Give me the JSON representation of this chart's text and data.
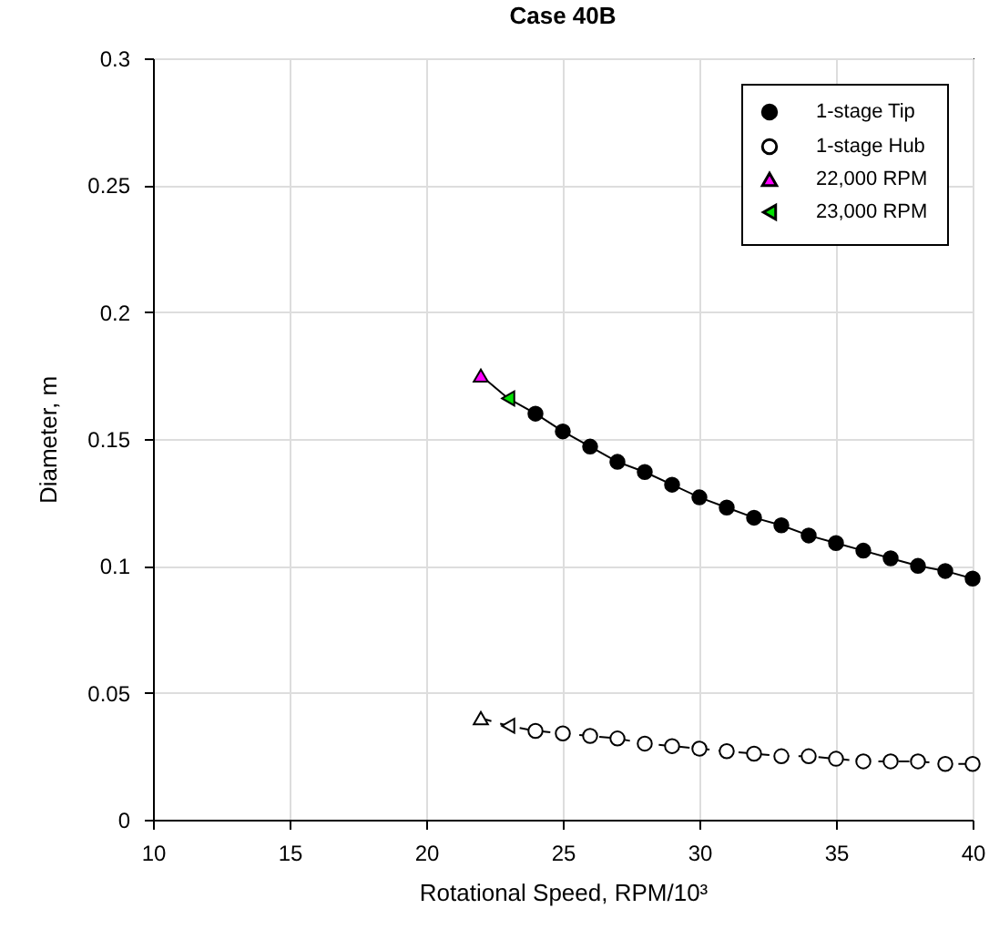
{
  "chart_data": {
    "type": "line",
    "title": "Case 40B",
    "xlabel": "Rotational Speed, RPM/10³",
    "ylabel": "Diameter, m",
    "xlim": [
      10,
      40
    ],
    "xticks": [
      10,
      15,
      20,
      25,
      30,
      35,
      40
    ],
    "ylim": [
      0,
      0.3
    ],
    "yticks": [
      0,
      0.05,
      0.1,
      0.15,
      0.2,
      0.25,
      0.3
    ],
    "grid": true,
    "legend": "top right",
    "series": [
      {
        "name": "1-stage Tip",
        "type": "line",
        "color": "#000000",
        "marker": "circle",
        "line_style": "solid",
        "x": [
          22,
          23,
          24,
          25,
          26,
          27,
          28,
          29,
          30,
          31,
          32,
          33,
          34,
          35,
          36,
          37,
          38,
          39,
          40
        ],
        "values": [
          0.175,
          0.166,
          0.16,
          0.153,
          0.147,
          0.141,
          0.137,
          0.132,
          0.127,
          0.123,
          0.119,
          0.116,
          0.112,
          0.109,
          0.106,
          0.103,
          0.1,
          0.098,
          0.095
        ]
      },
      {
        "name": "1-stage Hub",
        "type": "line",
        "color": "#000000",
        "colors": [
          "#ffffff",
          "#ffffff",
          "#ffffff",
          "#ffffff",
          "#ffffff",
          "#ffffff",
          "#ffffff",
          "#ffffff",
          "#ffffff",
          "#ffffff",
          "#ffffff",
          "#ffffff",
          "#ffffff",
          "#ffffff",
          "#ffffff",
          "#ffffff",
          "#ffffff",
          "#ffffff",
          "#ffffff"
        ],
        "marker": "circle",
        "line_style": "dashed",
        "x": [
          22,
          23,
          24,
          25,
          26,
          27,
          28,
          29,
          30,
          31,
          32,
          33,
          34,
          35,
          36,
          37,
          38,
          39,
          40
        ],
        "values": [
          0.04,
          0.037,
          0.035,
          0.034,
          0.033,
          0.032,
          0.03,
          0.029,
          0.028,
          0.027,
          0.026,
          0.025,
          0.025,
          0.024,
          0.023,
          0.023,
          0.023,
          0.022,
          0.022
        ]
      },
      {
        "name": "22,000 RPM",
        "type": "scatter",
        "color": "#ff00ff",
        "colors": [
          "#ff00ff",
          "#ffffff"
        ],
        "marker": "triangle",
        "x": [
          22,
          22
        ],
        "values": [
          0.175,
          0.04
        ]
      },
      {
        "name": "23,000 RPM",
        "type": "scatter",
        "color": "#00e000",
        "colors": [
          "#00e000",
          "#ffffff"
        ],
        "marker": "triangle-left",
        "x": [
          23,
          23
        ],
        "values": [
          0.166,
          0.037
        ]
      }
    ]
  }
}
